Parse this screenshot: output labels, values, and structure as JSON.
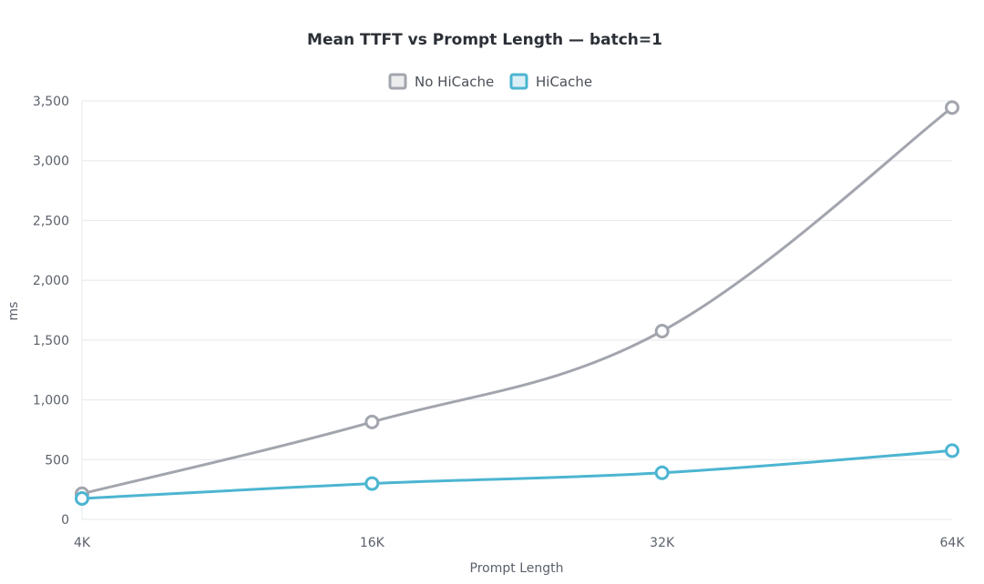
{
  "chart_data": {
    "type": "line",
    "title": "Mean TTFT vs Prompt Length — batch=1",
    "xlabel": "Prompt Length",
    "ylabel": "ms",
    "categories": [
      "4K",
      "16K",
      "32K",
      "64K"
    ],
    "ylim": [
      0,
      3500
    ],
    "yticks": [
      0,
      500,
      1000,
      1500,
      2000,
      2500,
      3000,
      3500
    ],
    "ytick_labels": [
      "0",
      "500",
      "1,000",
      "1,500",
      "2,000",
      "2,500",
      "3,000",
      "3,500"
    ],
    "grid": true,
    "legend_position": "top-center",
    "smooth": true,
    "series": [
      {
        "name": "No HiCache",
        "color": "#a3a5ae",
        "values": [
          215,
          815,
          1575,
          3445
        ]
      },
      {
        "name": "HiCache",
        "color": "#4cb5d1",
        "values": [
          175,
          300,
          390,
          575
        ]
      }
    ]
  }
}
